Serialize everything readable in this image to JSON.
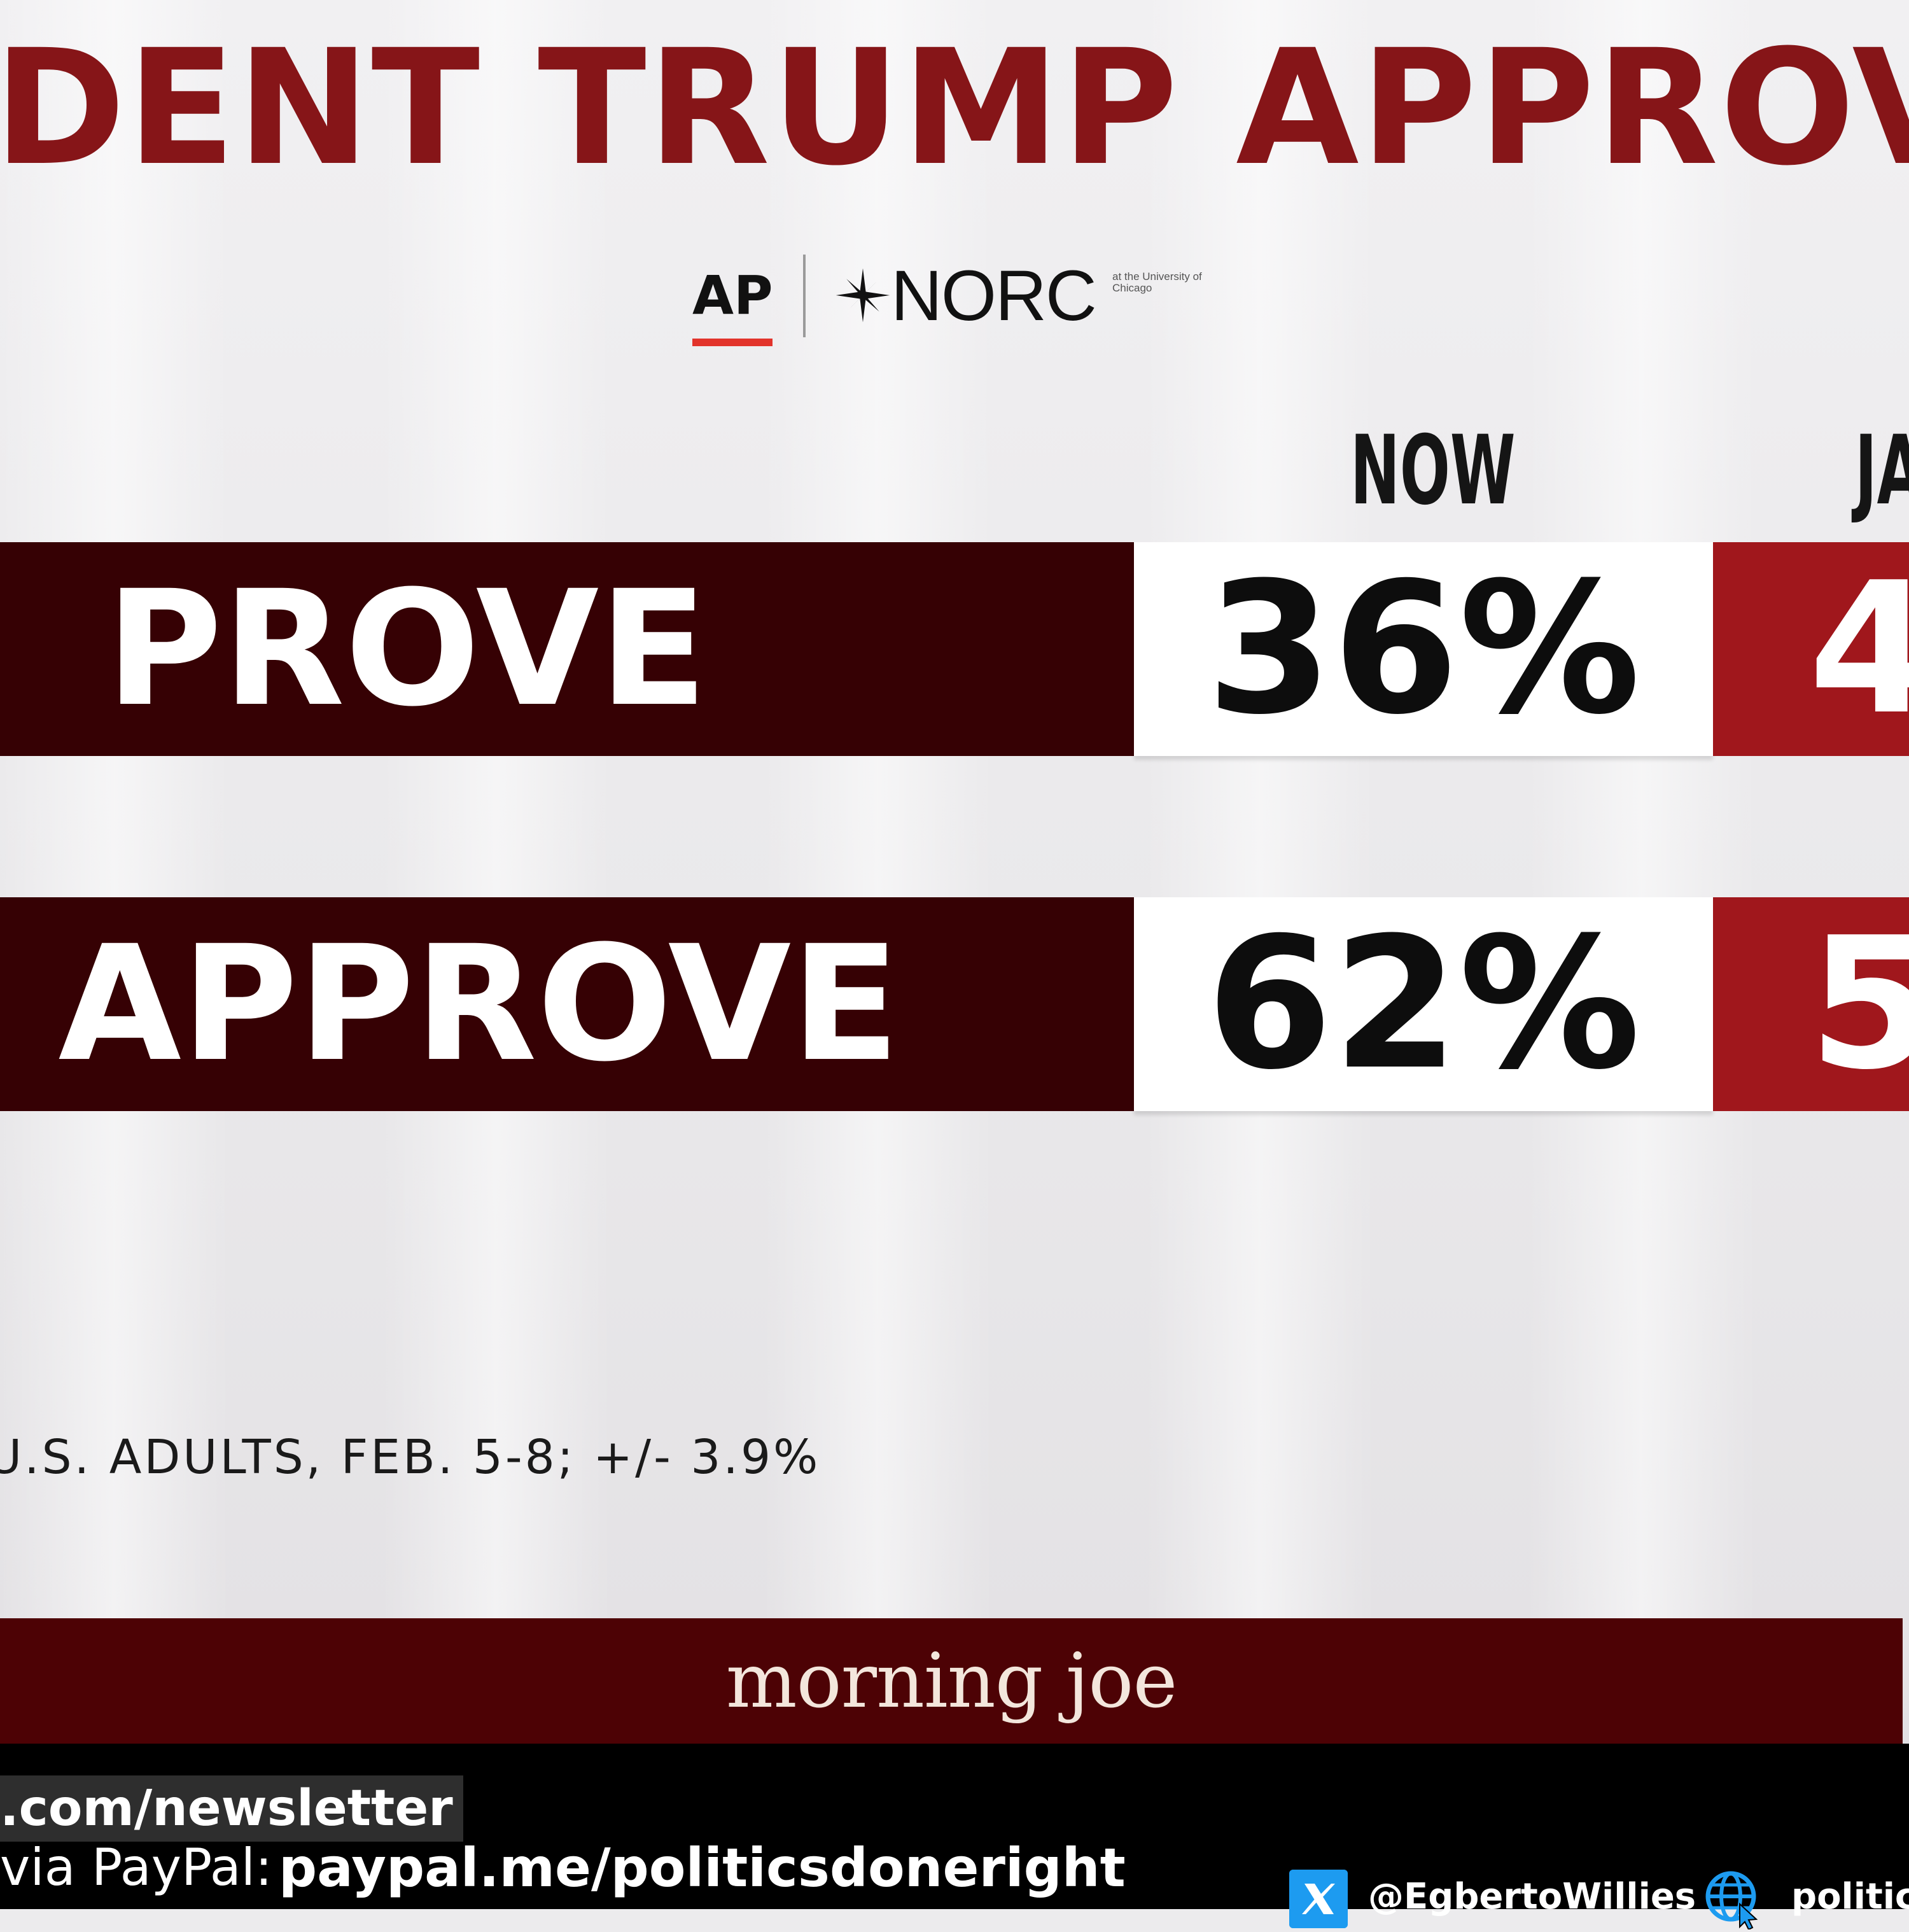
{
  "title": "DENT TRUMP APPROVAL RA",
  "logos": {
    "ap": "AP",
    "norc": "NORC",
    "norc_sub": "at the University of Chicago"
  },
  "columns": {
    "now": "NOW",
    "previous_partial": "JA"
  },
  "rows": [
    {
      "label": "PROVE",
      "now": "36%",
      "previous_partial": "4"
    },
    {
      "label": "APPROVE",
      "now": "62%",
      "previous_partial": "5"
    }
  ],
  "footnote": "U.S. ADULTS, FEB. 5-8;  +/- 3.9%",
  "brand": "morning joe",
  "ticker": {
    "newsletter": ".com/newsletter",
    "paypal_label": "via PayPal:",
    "paypal_url": "paypal.me/politicsdoneright",
    "x_handle": "@EgbertoWillies",
    "site": "politics"
  },
  "icons": {
    "x": "x-logo-icon",
    "globe": "globe-cursor-icon",
    "norc_star": "norc-star-icon"
  },
  "colors": {
    "title": "#861518",
    "label_band": "#360104",
    "previous_band": "#a0171c",
    "brand_bar": "#4d0205",
    "ap_accent": "#e2332b",
    "x_blue": "#1d9bf0"
  }
}
